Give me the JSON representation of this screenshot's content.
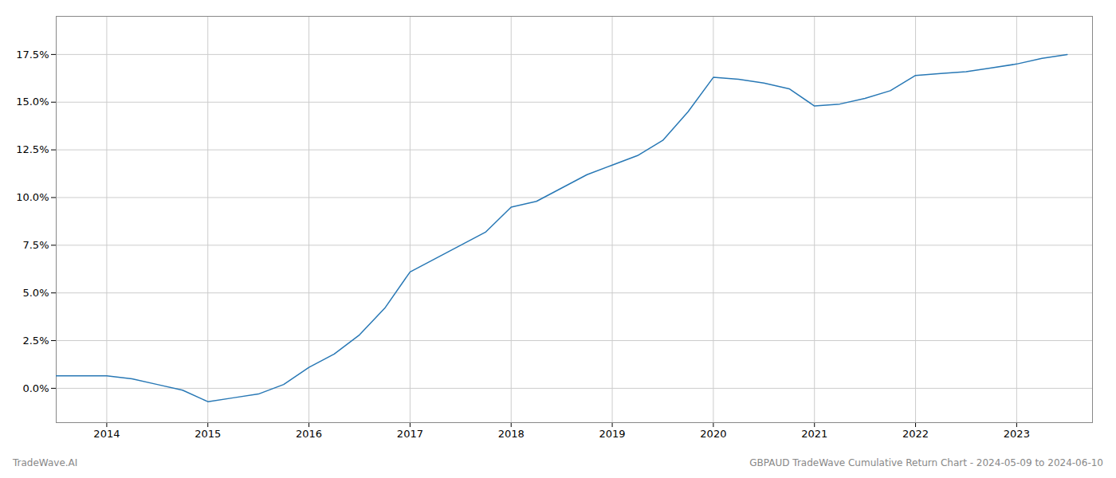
{
  "chart_data": {
    "type": "line",
    "x": [
      2013.5,
      2014.0,
      2014.25,
      2014.5,
      2014.75,
      2015.0,
      2015.25,
      2015.5,
      2015.75,
      2016.0,
      2016.25,
      2016.5,
      2016.75,
      2017.0,
      2017.25,
      2017.5,
      2017.75,
      2018.0,
      2018.25,
      2018.5,
      2018.75,
      2019.0,
      2019.25,
      2019.5,
      2019.75,
      2020.0,
      2020.25,
      2020.5,
      2020.75,
      2021.0,
      2021.25,
      2021.5,
      2021.75,
      2022.0,
      2022.25,
      2022.5,
      2022.75,
      2023.0,
      2023.25,
      2023.5
    ],
    "values": [
      0.65,
      0.65,
      0.5,
      0.2,
      -0.1,
      -0.7,
      -0.5,
      -0.3,
      0.2,
      1.1,
      1.8,
      2.8,
      4.2,
      6.1,
      6.8,
      7.5,
      8.2,
      9.5,
      9.8,
      10.5,
      11.2,
      11.7,
      12.2,
      13.0,
      14.5,
      16.3,
      16.2,
      16.0,
      15.7,
      14.8,
      14.9,
      15.2,
      15.6,
      16.4,
      16.5,
      16.6,
      16.8,
      17.0,
      17.3,
      17.5
    ],
    "color": "#2878b5",
    "xlim": [
      2013.5,
      2023.75
    ],
    "ylim": [
      -1.8,
      19.5
    ],
    "xticks": [
      2014,
      2015,
      2016,
      2017,
      2018,
      2019,
      2020,
      2021,
      2022,
      2023
    ],
    "yticks": [
      {
        "value": 0.0,
        "label": "0.0%"
      },
      {
        "value": 2.5,
        "label": "2.5%"
      },
      {
        "value": 5.0,
        "label": "5.0%"
      },
      {
        "value": 7.5,
        "label": "7.5%"
      },
      {
        "value": 10.0,
        "label": "10.0%"
      },
      {
        "value": 12.5,
        "label": "12.5%"
      },
      {
        "value": 15.0,
        "label": "15.0%"
      },
      {
        "value": 17.5,
        "label": "17.5%"
      }
    ],
    "grid": true,
    "annotations": [
      "TradeWave.AI",
      "GBPAUD TradeWave Cumulative Return Chart - 2024-05-09 to 2024-06-10"
    ]
  }
}
